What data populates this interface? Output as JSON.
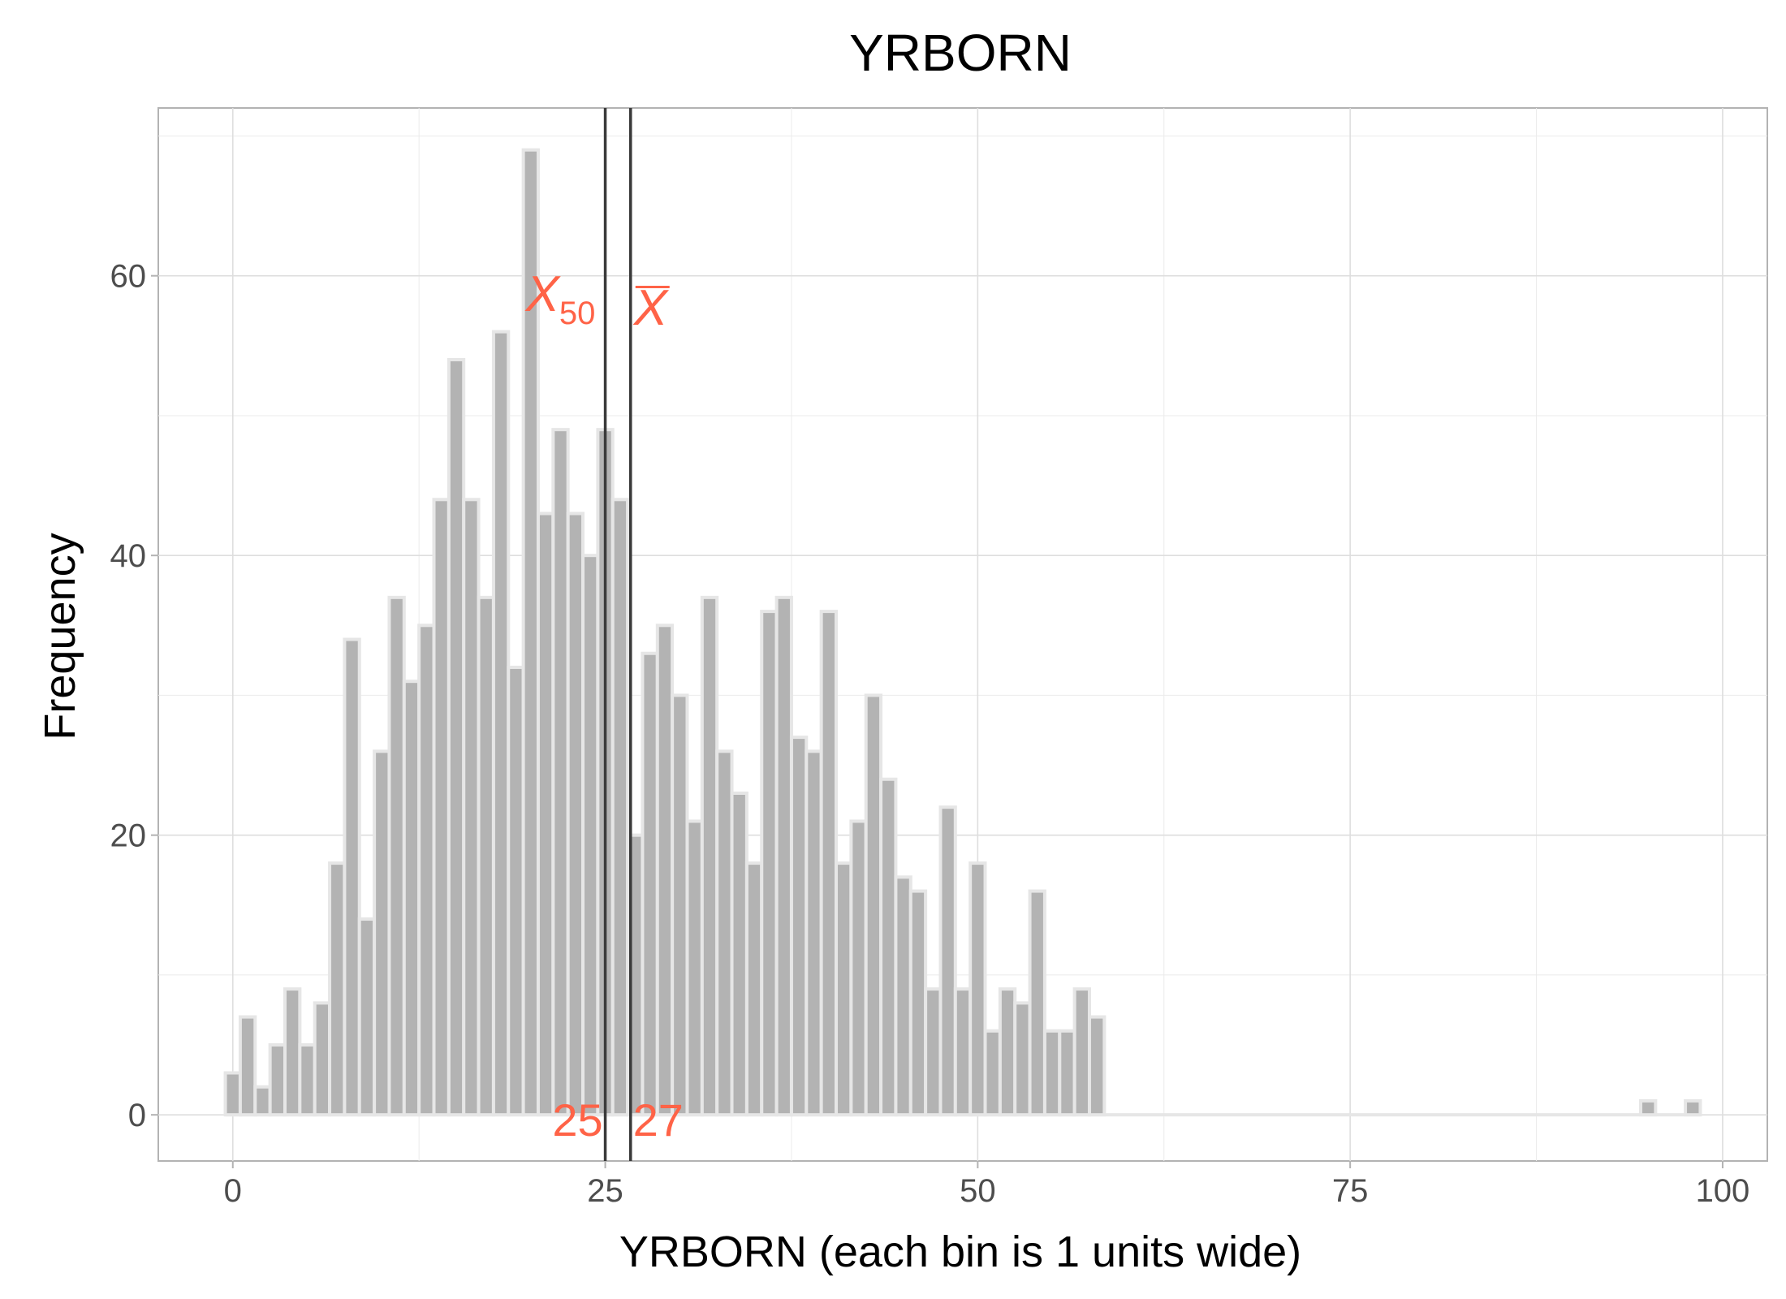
{
  "chart_data": {
    "type": "bar",
    "title": "YRBORN",
    "xlabel": "YRBORN (each bin is 1 units wide)",
    "ylabel": "Frequency",
    "bin_width": 1,
    "xlim": [
      -5,
      103
    ],
    "ylim": [
      -3.3,
      72
    ],
    "x_ticks": [
      0,
      25,
      50,
      75,
      100
    ],
    "y_ticks": [
      0,
      20,
      40,
      60
    ],
    "grid": true,
    "bar_fill": "#b3b3b3",
    "bar_outline": "#e6e6e6",
    "annotation_color": "#ff6347",
    "bins": [
      {
        "x": 0,
        "count": 3
      },
      {
        "x": 1,
        "count": 7
      },
      {
        "x": 2,
        "count": 2
      },
      {
        "x": 3,
        "count": 5
      },
      {
        "x": 4,
        "count": 9
      },
      {
        "x": 5,
        "count": 5
      },
      {
        "x": 6,
        "count": 8
      },
      {
        "x": 7,
        "count": 18
      },
      {
        "x": 8,
        "count": 34
      },
      {
        "x": 9,
        "count": 14
      },
      {
        "x": 10,
        "count": 26
      },
      {
        "x": 11,
        "count": 37
      },
      {
        "x": 12,
        "count": 31
      },
      {
        "x": 13,
        "count": 35
      },
      {
        "x": 14,
        "count": 44
      },
      {
        "x": 15,
        "count": 54
      },
      {
        "x": 16,
        "count": 44
      },
      {
        "x": 17,
        "count": 37
      },
      {
        "x": 18,
        "count": 56
      },
      {
        "x": 19,
        "count": 32
      },
      {
        "x": 20,
        "count": 69
      },
      {
        "x": 21,
        "count": 43
      },
      {
        "x": 22,
        "count": 49
      },
      {
        "x": 23,
        "count": 43
      },
      {
        "x": 24,
        "count": 40
      },
      {
        "x": 25,
        "count": 49
      },
      {
        "x": 26,
        "count": 44
      },
      {
        "x": 27,
        "count": 20
      },
      {
        "x": 28,
        "count": 33
      },
      {
        "x": 29,
        "count": 35
      },
      {
        "x": 30,
        "count": 30
      },
      {
        "x": 31,
        "count": 21
      },
      {
        "x": 32,
        "count": 37
      },
      {
        "x": 33,
        "count": 26
      },
      {
        "x": 34,
        "count": 23
      },
      {
        "x": 35,
        "count": 18
      },
      {
        "x": 36,
        "count": 36
      },
      {
        "x": 37,
        "count": 37
      },
      {
        "x": 38,
        "count": 27
      },
      {
        "x": 39,
        "count": 26
      },
      {
        "x": 40,
        "count": 36
      },
      {
        "x": 41,
        "count": 18
      },
      {
        "x": 42,
        "count": 21
      },
      {
        "x": 43,
        "count": 30
      },
      {
        "x": 44,
        "count": 24
      },
      {
        "x": 45,
        "count": 17
      },
      {
        "x": 46,
        "count": 16
      },
      {
        "x": 47,
        "count": 9
      },
      {
        "x": 48,
        "count": 22
      },
      {
        "x": 49,
        "count": 9
      },
      {
        "x": 50,
        "count": 18
      },
      {
        "x": 51,
        "count": 6
      },
      {
        "x": 52,
        "count": 9
      },
      {
        "x": 53,
        "count": 8
      },
      {
        "x": 54,
        "count": 16
      },
      {
        "x": 55,
        "count": 6
      },
      {
        "x": 56,
        "count": 6
      },
      {
        "x": 57,
        "count": 9
      },
      {
        "x": 58,
        "count": 7
      },
      {
        "x": 95,
        "count": 1
      },
      {
        "x": 98,
        "count": 1
      }
    ],
    "reference_lines": [
      {
        "x": 25,
        "label": "25"
      },
      {
        "x": 26.7,
        "label": "27"
      }
    ]
  }
}
